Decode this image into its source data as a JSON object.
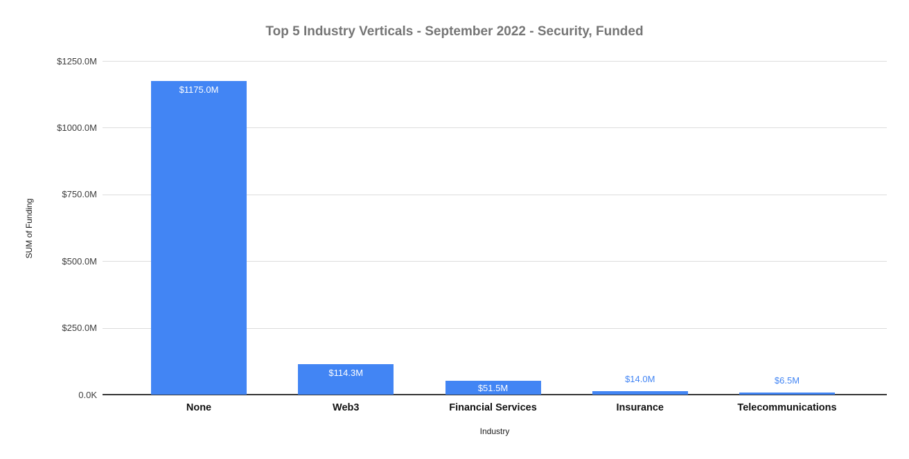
{
  "chart_data": {
    "type": "bar",
    "title": "Top 5 Industry Verticals - September 2022 - Security, Funded",
    "xlabel": "Industry",
    "ylabel": "SUM of Funding",
    "categories": [
      "None",
      "Web3",
      "Financial Services",
      "Insurance",
      "Telecommunications"
    ],
    "values": [
      1175.0,
      114.3,
      51.5,
      14.0,
      6.5
    ],
    "value_labels": [
      "$1175.0M",
      "$114.3M",
      "$51.5M",
      "$14.0M",
      "$6.5M"
    ],
    "value_unit": "USD millions",
    "ylim": [
      0,
      1250
    ],
    "ytick_values": [
      0,
      250,
      500,
      750,
      1000,
      1250
    ],
    "ytick_labels": [
      "0.0K",
      "$250.0M",
      "$500.0M",
      "$750.0M",
      "$1000.0M",
      "$1250.0M"
    ],
    "grid": "horizontal gridlines on",
    "legend_position": "none",
    "colors": {
      "bar": "#4285f4",
      "title": "#757575",
      "gridline": "#dcdcdc",
      "axis_line": "#333333",
      "tick_label": "#3c3c3c",
      "category_label": "#111111",
      "value_label_inside": "#ffffff",
      "value_label_outside": "#4285f4"
    }
  }
}
